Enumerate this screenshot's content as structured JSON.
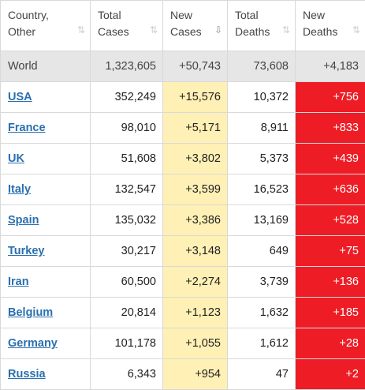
{
  "headers": [
    {
      "line1": "Country,",
      "line2": "Other",
      "sort": "⇅",
      "active": false
    },
    {
      "line1": "Total",
      "line2": "Cases",
      "sort": "⇅",
      "active": false
    },
    {
      "line1": "New",
      "line2": "Cases",
      "sort": "⇩",
      "active": true
    },
    {
      "line1": "Total",
      "line2": "Deaths",
      "sort": "⇅",
      "active": false
    },
    {
      "line1": "New",
      "line2": "Deaths",
      "sort": "⇅",
      "active": false
    }
  ],
  "world": {
    "name": "World",
    "total_cases": "1,323,605",
    "new_cases": "+50,743",
    "total_deaths": "73,608",
    "new_deaths": "+4,183"
  },
  "rows": [
    {
      "name": "USA",
      "total_cases": "352,249",
      "new_cases": "+15,576",
      "total_deaths": "10,372",
      "new_deaths": "+756"
    },
    {
      "name": "France",
      "total_cases": "98,010",
      "new_cases": "+5,171",
      "total_deaths": "8,911",
      "new_deaths": "+833"
    },
    {
      "name": "UK",
      "total_cases": "51,608",
      "new_cases": "+3,802",
      "total_deaths": "5,373",
      "new_deaths": "+439"
    },
    {
      "name": "Italy",
      "total_cases": "132,547",
      "new_cases": "+3,599",
      "total_deaths": "16,523",
      "new_deaths": "+636"
    },
    {
      "name": "Spain",
      "total_cases": "135,032",
      "new_cases": "+3,386",
      "total_deaths": "13,169",
      "new_deaths": "+528"
    },
    {
      "name": "Turkey",
      "total_cases": "30,217",
      "new_cases": "+3,148",
      "total_deaths": "649",
      "new_deaths": "+75"
    },
    {
      "name": "Iran",
      "total_cases": "60,500",
      "new_cases": "+2,274",
      "total_deaths": "3,739",
      "new_deaths": "+136"
    },
    {
      "name": "Belgium",
      "total_cases": "20,814",
      "new_cases": "+1,123",
      "total_deaths": "1,632",
      "new_deaths": "+185"
    },
    {
      "name": "Germany",
      "total_cases": "101,178",
      "new_cases": "+1,055",
      "total_deaths": "1,612",
      "new_deaths": "+28"
    },
    {
      "name": "Russia",
      "total_cases": "6,343",
      "new_cases": "+954",
      "total_deaths": "47",
      "new_deaths": "+2"
    }
  ],
  "colors": {
    "new_cases_bg": "#fff0b5",
    "new_deaths_bg": "#ee1c25",
    "world_row_bg": "#e6e6e6",
    "link": "#2a6fb0"
  }
}
